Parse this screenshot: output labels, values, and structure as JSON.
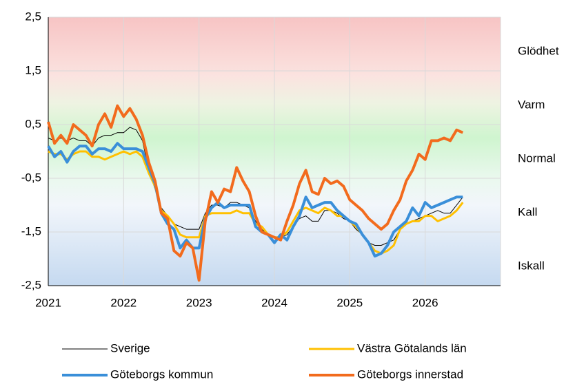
{
  "chart_data": {
    "type": "line",
    "x": [
      2021,
      2021.083,
      2021.167,
      2021.25,
      2021.333,
      2021.417,
      2021.5,
      2021.583,
      2021.667,
      2021.75,
      2021.833,
      2021.917,
      2022,
      2022.083,
      2022.167,
      2022.25,
      2022.333,
      2022.417,
      2022.5,
      2022.583,
      2022.667,
      2022.75,
      2022.833,
      2022.917,
      2023,
      2023.083,
      2023.167,
      2023.25,
      2023.333,
      2023.417,
      2023.5,
      2023.583,
      2023.667,
      2023.75,
      2023.833,
      2023.917,
      2024,
      2024.083,
      2024.167,
      2024.25,
      2024.333,
      2024.417,
      2024.5,
      2024.583,
      2024.667,
      2024.75,
      2024.833,
      2024.917,
      2025,
      2025.083,
      2025.167,
      2025.25,
      2025.333,
      2025.417,
      2025.5,
      2025.583,
      2025.667,
      2025.75,
      2025.833,
      2025.917,
      2026,
      2026.083,
      2026.167,
      2026.25,
      2026.333,
      2026.417,
      2026.5
    ],
    "series": [
      {
        "name": "Sverige",
        "color": "#000000",
        "values": [
          0.25,
          0.2,
          0.25,
          0.2,
          0.25,
          0.2,
          0.2,
          0.1,
          0.25,
          0.3,
          0.3,
          0.35,
          0.35,
          0.45,
          0.4,
          0.2,
          -0.35,
          -0.7,
          -1.05,
          -1.2,
          -1.35,
          -1.4,
          -1.45,
          -1.45,
          -1.45,
          -1.15,
          -1.0,
          -1.0,
          -1.05,
          -0.95,
          -0.95,
          -1.0,
          -1.05,
          -1.3,
          -1.45,
          -1.55,
          -1.6,
          -1.6,
          -1.55,
          -1.4,
          -1.25,
          -1.2,
          -1.3,
          -1.3,
          -1.1,
          -1.1,
          -1.15,
          -1.25,
          -1.3,
          -1.45,
          -1.55,
          -1.7,
          -1.75,
          -1.75,
          -1.7,
          -1.65,
          -1.45,
          -1.35,
          -1.3,
          -1.25,
          -1.2,
          -1.15,
          -1.1,
          -1.15,
          -1.15,
          -1.0,
          -0.85
        ]
      },
      {
        "name": "Västra Götalands län",
        "color": "#ffc000",
        "values": [
          0.0,
          -0.05,
          -0.05,
          -0.15,
          -0.05,
          0.0,
          0.0,
          -0.1,
          -0.1,
          -0.15,
          -0.1,
          -0.05,
          0.0,
          -0.05,
          0.0,
          -0.1,
          -0.4,
          -0.65,
          -1.1,
          -1.2,
          -1.35,
          -1.55,
          -1.6,
          -1.6,
          -1.6,
          -1.2,
          -1.15,
          -1.15,
          -1.15,
          -1.15,
          -1.1,
          -1.15,
          -1.15,
          -1.35,
          -1.4,
          -1.55,
          -1.6,
          -1.6,
          -1.5,
          -1.3,
          -1.1,
          -1.05,
          -1.1,
          -1.15,
          -1.05,
          -1.1,
          -1.2,
          -1.2,
          -1.3,
          -1.4,
          -1.55,
          -1.7,
          -1.85,
          -1.9,
          -1.85,
          -1.75,
          -1.45,
          -1.35,
          -1.3,
          -1.3,
          -1.2,
          -1.2,
          -1.3,
          -1.25,
          -1.2,
          -1.1,
          -0.95
        ]
      },
      {
        "name": "Göteborgs kommun",
        "color": "#3a8fd9",
        "values": [
          0.1,
          -0.1,
          0.0,
          -0.2,
          0.0,
          0.1,
          0.1,
          -0.05,
          0.05,
          0.05,
          0.0,
          0.15,
          0.05,
          0.05,
          0.05,
          0.0,
          -0.3,
          -0.6,
          -1.15,
          -1.35,
          -1.45,
          -1.8,
          -1.65,
          -1.8,
          -1.8,
          -1.25,
          -1.05,
          -0.95,
          -1.05,
          -1.0,
          -1.0,
          -1.0,
          -1.0,
          -1.4,
          -1.5,
          -1.55,
          -1.7,
          -1.55,
          -1.65,
          -1.4,
          -1.2,
          -0.85,
          -1.05,
          -1.0,
          -0.95,
          -0.95,
          -1.1,
          -1.2,
          -1.3,
          -1.35,
          -1.55,
          -1.7,
          -1.95,
          -1.9,
          -1.75,
          -1.5,
          -1.4,
          -1.3,
          -1.05,
          -1.2,
          -0.95,
          -1.05,
          -1.0,
          -0.95,
          -0.9,
          -0.85,
          -0.85
        ]
      },
      {
        "name": "Göteborgs innerstad",
        "color": "#f26b1d",
        "values": [
          0.55,
          0.15,
          0.3,
          0.15,
          0.5,
          0.4,
          0.3,
          0.1,
          0.5,
          0.7,
          0.45,
          0.85,
          0.65,
          0.8,
          0.6,
          0.3,
          -0.2,
          -0.55,
          -1.15,
          -1.25,
          -1.85,
          -1.95,
          -1.7,
          -1.8,
          -2.4,
          -1.3,
          -0.75,
          -0.95,
          -0.7,
          -0.75,
          -0.3,
          -0.55,
          -0.75,
          -1.2,
          -1.5,
          -1.55,
          -1.6,
          -1.65,
          -1.3,
          -1.0,
          -0.6,
          -0.35,
          -0.75,
          -0.8,
          -0.5,
          -0.6,
          -0.55,
          -0.65,
          -0.9,
          -1.0,
          -1.1,
          -1.25,
          -1.35,
          -1.45,
          -1.35,
          -1.1,
          -0.9,
          -0.55,
          -0.35,
          -0.05,
          -0.15,
          0.2,
          0.2,
          0.25,
          0.2,
          0.4,
          0.35
        ]
      }
    ],
    "xlim": [
      2021,
      2027
    ],
    "xticks": [
      2021,
      2022,
      2023,
      2024,
      2025,
      2026
    ],
    "ylim": [
      -2.5,
      2.5
    ],
    "yticks": [
      {
        "value": -2.5,
        "label": "-2,5"
      },
      {
        "value": -1.5,
        "label": "-1,5"
      },
      {
        "value": -0.5,
        "label": "-0,5"
      },
      {
        "value": 0.5,
        "label": "0,5"
      },
      {
        "value": 1.5,
        "label": "1,5"
      },
      {
        "value": 2.5,
        "label": "2,5"
      }
    ],
    "grid": true,
    "zone_labels": [
      "Glödhet",
      "Varm",
      "Normal",
      "Kall",
      "Iskall"
    ],
    "legend": "bottom"
  }
}
